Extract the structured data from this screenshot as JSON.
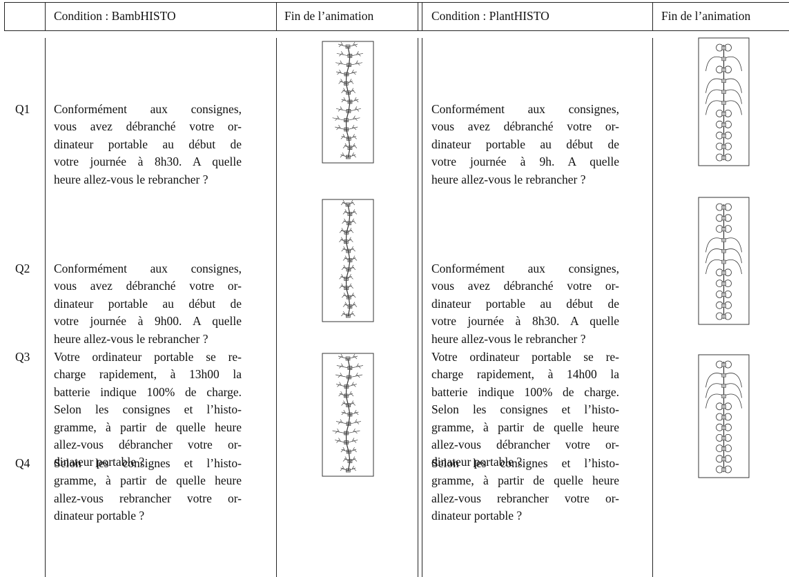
{
  "header": {
    "condition_a": "Condition : BambHISTO",
    "end_a": "Fin de l’animation",
    "condition_b": "Condition : PlantHISTO",
    "end_b": "Fin de l’animation"
  },
  "rows": [
    {
      "label": "Q1",
      "a": [
        "Conformément aux consignes,",
        "vous avez débranché votre or-",
        "dinateur portable au début de",
        "votre journée à 8h30. A quelle",
        "heure allez-vous le rebrancher ?"
      ],
      "b": [
        "Conformément aux consignes,",
        "vous avez débranché votre or-",
        "dinateur portable au début de",
        "votre journée à 9h. A quelle",
        "heure allez-vous le rebrancher ?"
      ]
    },
    {
      "label": "Q2",
      "a": [
        "Conformément aux consignes,",
        "vous avez débranché votre or-",
        "dinateur portable au début de",
        "votre journée à 9h00. A quelle",
        "heure allez-vous le rebrancher ?"
      ],
      "b": [
        "Conformément aux consignes,",
        "vous avez débranché votre or-",
        "dinateur portable au début de",
        "votre journée à 8h30. A quelle",
        "heure allez-vous le rebrancher ?"
      ]
    },
    {
      "label": "Q3",
      "a": [
        "Votre ordinateur portable se re-",
        "charge rapidement, à 13h00 la",
        "batterie indique 100% de charge.",
        "Selon les consignes et l’histo-",
        "gramme, à partir de quelle heure",
        "allez-vous débrancher votre or-",
        "dinateur portable ?"
      ],
      "b": [
        "Votre ordinateur portable se re-",
        "charge rapidement, à 14h00 la",
        "batterie indique 100% de charge.",
        "Selon les consignes et l’histo-",
        "gramme, à partir de quelle heure",
        "allez-vous débrancher votre or-",
        "dinateur portable ?"
      ]
    },
    {
      "label": "Q4",
      "a": [
        "Selon les consignes et l’histo-",
        "gramme, à partir de quelle heure",
        "allez-vous rebrancher votre or-",
        "dinateur portable ?"
      ],
      "b": [
        "Selon les consignes et l’histo-",
        "gramme, à partir de quelle heure",
        "allez-vous rebrancher votre or-",
        "dinateur portable ?"
      ]
    }
  ]
}
